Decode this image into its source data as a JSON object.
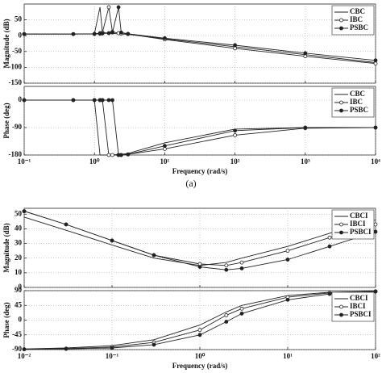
{
  "chart_data": [
    {
      "type": "line",
      "ylabel": "Magnitude (dB)",
      "log_x": true,
      "grid": true,
      "legend": "northeast",
      "x": [
        0.1,
        0.5,
        1,
        1.2,
        1.3,
        1.6,
        1.8,
        2.2,
        2.4,
        3,
        10,
        100,
        1000,
        10000
      ],
      "xlim": [
        0.1,
        10000
      ],
      "xticks": [
        0.1,
        1,
        10,
        100,
        1000,
        10000
      ],
      "ylim": [
        -150,
        100
      ],
      "yticks": [
        -150,
        -100,
        -50,
        0,
        50
      ],
      "series": [
        {
          "name": "CBC",
          "color": "#222222",
          "marker": "none",
          "values": [
            5,
            5,
            6,
            90,
            10,
            8,
            7,
            6,
            5,
            4,
            -10,
            -35,
            -60,
            -85
          ]
        },
        {
          "name": "IBC",
          "color": "#222222",
          "marker": "circle-open",
          "values": [
            5,
            5,
            6,
            8,
            10,
            90,
            12,
            8,
            6,
            5,
            -12,
            -40,
            -65,
            -88
          ]
        },
        {
          "name": "PSBC",
          "color": "#222222",
          "marker": "circle-filled",
          "values": [
            5,
            5,
            5,
            6,
            7,
            8,
            10,
            90,
            10,
            6,
            -8,
            -30,
            -55,
            -78
          ]
        }
      ]
    },
    {
      "type": "line",
      "ylabel": "Phase (deg)",
      "xlabel": "Frequency  (rad/s)",
      "log_x": true,
      "grid": true,
      "legend": "northeast",
      "x": [
        0.1,
        0.5,
        1,
        1.2,
        1.3,
        1.6,
        1.8,
        2.2,
        2.4,
        3,
        10,
        100,
        1000,
        10000
      ],
      "xlim": [
        0.1,
        10000
      ],
      "xticks": [
        {
          "value": 0.1,
          "label": "10⁻¹"
        },
        {
          "value": 1,
          "label": "10⁰"
        },
        {
          "value": 10,
          "label": "10¹"
        },
        {
          "value": 100,
          "label": "10²"
        },
        {
          "value": 1000,
          "label": "10³"
        },
        {
          "value": 10000,
          "label": "10⁴"
        }
      ],
      "ylim": [
        -180,
        45
      ],
      "yticks": [
        -180,
        -90,
        0
      ],
      "series": [
        {
          "name": "CBC",
          "color": "#222222",
          "marker": "none",
          "values": [
            0,
            0,
            0,
            -180,
            -180,
            -180,
            -180,
            -178,
            -178,
            -175,
            -140,
            -95,
            -90,
            -90
          ]
        },
        {
          "name": "IBC",
          "color": "#222222",
          "marker": "circle-open",
          "values": [
            0,
            0,
            0,
            0,
            0,
            -180,
            -180,
            -180,
            -180,
            -178,
            -160,
            -115,
            -92,
            -90
          ]
        },
        {
          "name": "PSBC",
          "color": "#222222",
          "marker": "circle-filled",
          "values": [
            0,
            0,
            0,
            0,
            0,
            0,
            0,
            -180,
            -180,
            -178,
            -150,
            -100,
            -90,
            -90
          ]
        }
      ]
    },
    {
      "type": "line",
      "ylabel": "Magnitude (dB)",
      "log_x": true,
      "grid": true,
      "legend": "northeast",
      "x": [
        0.01,
        0.03,
        0.1,
        0.3,
        1,
        2,
        3,
        10,
        30,
        100
      ],
      "xlim": [
        0.01,
        100
      ],
      "xticks": [
        0.01,
        0.1,
        1,
        10,
        100
      ],
      "ylim": [
        0,
        54
      ],
      "yticks": [
        0,
        10,
        20,
        30,
        40,
        50
      ],
      "series": [
        {
          "name": "CBCI",
          "color": "#222222",
          "marker": "none",
          "values": [
            48,
            39,
            29,
            20,
            15,
            17,
            20,
            28,
            37,
            46
          ]
        },
        {
          "name": "IBCI",
          "color": "#222222",
          "marker": "circle-open",
          "values": [
            52,
            43,
            32,
            22,
            16,
            15,
            17,
            25,
            34,
            43
          ]
        },
        {
          "name": "PSBCI",
          "color": "#222222",
          "marker": "circle-filled",
          "values": [
            52,
            43,
            32,
            22,
            14,
            12,
            13,
            19,
            28,
            38
          ]
        }
      ]
    },
    {
      "type": "line",
      "ylabel": "Phase (deg)",
      "xlabel": "Frequency  (rad/s)",
      "log_x": true,
      "grid": true,
      "legend": "northeast",
      "x": [
        0.01,
        0.03,
        0.1,
        0.3,
        1,
        2,
        3,
        10,
        30,
        100
      ],
      "xlim": [
        0.01,
        100
      ],
      "xticks": [
        {
          "value": 0.01,
          "label": "10⁻²"
        },
        {
          "value": 0.1,
          "label": "10⁻¹"
        },
        {
          "value": 1,
          "label": "10⁰"
        },
        {
          "value": 10,
          "label": "10¹"
        },
        {
          "value": 100,
          "label": "10²"
        }
      ],
      "ylim": [
        -90,
        90
      ],
      "yticks": [
        -90,
        -45,
        0,
        45,
        90
      ],
      "series": [
        {
          "name": "CBCI",
          "color": "#222222",
          "marker": "none",
          "values": [
            -88,
            -85,
            -78,
            -60,
            -15,
            25,
            45,
            75,
            85,
            88
          ]
        },
        {
          "name": "IBCI",
          "color": "#222222",
          "marker": "circle-open",
          "values": [
            -89,
            -87,
            -82,
            -68,
            -30,
            15,
            35,
            70,
            83,
            88
          ]
        },
        {
          "name": "PSBCI",
          "color": "#222222",
          "marker": "circle-filled",
          "values": [
            -89,
            -88,
            -85,
            -75,
            -45,
            -5,
            20,
            62,
            80,
            87
          ]
        }
      ]
    }
  ],
  "caption": "(a)"
}
